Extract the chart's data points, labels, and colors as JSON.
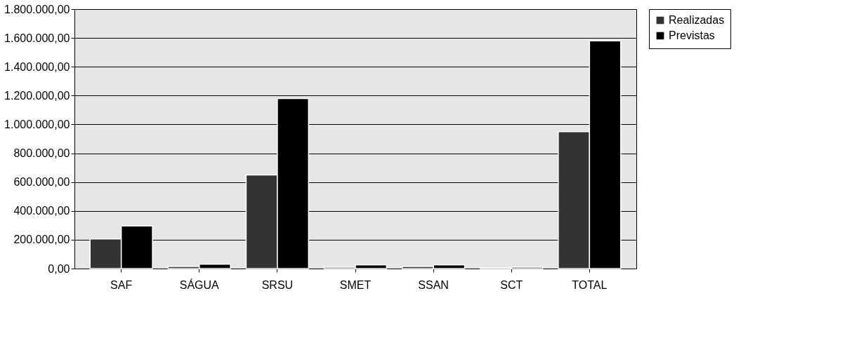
{
  "chart_data": {
    "type": "bar",
    "categories": [
      "SAF",
      "SÁGUA",
      "SRSU",
      "SMET",
      "SSAN",
      "SCT",
      "TOTAL"
    ],
    "series": [
      {
        "name": "Realizadas",
        "color": "#333333",
        "values": [
          205000,
          15000,
          650000,
          10000,
          15000,
          5000,
          950000
        ]
      },
      {
        "name": "Previstas",
        "color": "#000000",
        "values": [
          295000,
          30000,
          1180000,
          25000,
          25000,
          10000,
          1580000
        ]
      }
    ],
    "ylim": [
      0,
      1800000
    ],
    "yticks": [
      {
        "value": 0,
        "label": "0,00"
      },
      {
        "value": 200000,
        "label": "200.000,00"
      },
      {
        "value": 400000,
        "label": "400.000,00"
      },
      {
        "value": 600000,
        "label": "600.000,00"
      },
      {
        "value": 800000,
        "label": "800.000,00"
      },
      {
        "value": 1000000,
        "label": "1.000.000,00"
      },
      {
        "value": 1200000,
        "label": "1.200.000,00"
      },
      {
        "value": 1400000,
        "label": "1.400.000,00"
      },
      {
        "value": 1600000,
        "label": "1.600.000,00"
      },
      {
        "value": 1800000,
        "label": "1.800.000,00"
      }
    ],
    "grid": "y",
    "legend": "right"
  }
}
